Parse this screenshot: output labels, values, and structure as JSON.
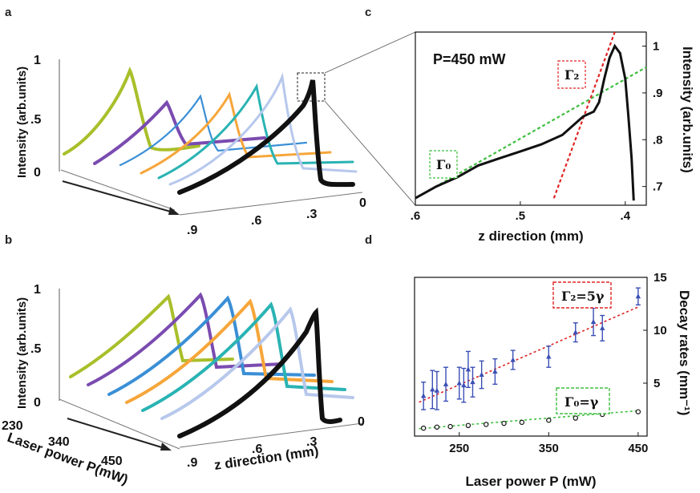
{
  "panels": {
    "a": "a",
    "b": "b",
    "c": "c",
    "d": "d"
  },
  "panel_a": {
    "y_ticks": [
      "1",
      ".5",
      "0"
    ],
    "y_label": "Intensity (arb.units)",
    "z_ticks": [
      ".9",
      ".6",
      ".3",
      "0"
    ]
  },
  "panel_b": {
    "y_ticks": [
      "1",
      ".5",
      "0"
    ],
    "y_label": "Intensity (arb.units)",
    "p_ticks": [
      "230",
      "340",
      "450"
    ],
    "p_label": "Laser power P(mW)",
    "z_ticks": [
      ".9",
      ".6",
      ".3",
      "0"
    ],
    "z_label": "z direction (mm)"
  },
  "panel_c": {
    "annotation": "P=450 mW",
    "gamma2_label": "Γ₂",
    "gamma0_label": "Γ₀",
    "x_ticks": [
      ".6",
      ".5",
      ".4"
    ],
    "x_label": "z direction (mm)",
    "y_ticks": [
      "1",
      ".9",
      ".8",
      ".7"
    ],
    "y_label": "Intensity (arb.units)"
  },
  "panel_d": {
    "gamma2_label": "Γ₂=5γ",
    "gamma0_label": "Γ₀=γ",
    "x_ticks": [
      "250",
      "350",
      "450"
    ],
    "x_label": "Laser power P (mW)",
    "y_ticks": [
      "15",
      "10",
      "5"
    ],
    "y_label": "Decay rates (mm⁻¹)"
  },
  "colors": {
    "olive": "#a9bf2a",
    "purple": "#7a4bb0",
    "blue": "#3a8fd6",
    "orange": "#f6a63a",
    "teal": "#2ab3b3",
    "lightblue": "#b7c8ec",
    "black": "#111111",
    "red_fit": "#e02424",
    "green_fit": "#3fbf3f",
    "markers": "#3b4fb5"
  },
  "chart_data": [
    {
      "panel": "c",
      "type": "line",
      "title": "P=450 mW",
      "xlabel": "z direction (mm)",
      "ylabel": "Intensity (arb.units)",
      "xlim": [
        0.6,
        0.38
      ],
      "ylim": [
        0.66,
        1.03
      ],
      "series": [
        {
          "x": [
            0.6,
            0.58,
            0.56,
            0.54,
            0.52,
            0.5,
            0.48,
            0.46,
            0.45,
            0.44,
            0.43,
            0.425,
            0.42,
            0.415,
            0.41,
            0.405,
            0.4,
            0.397,
            0.394,
            0.392
          ],
          "y": [
            0.675,
            0.7,
            0.72,
            0.745,
            0.76,
            0.775,
            0.79,
            0.81,
            0.83,
            0.85,
            0.86,
            0.88,
            0.93,
            0.975,
            1.0,
            0.985,
            0.93,
            0.85,
            0.76,
            0.67
          ]
        }
      ],
      "fits": [
        {
          "x": [
            0.6,
            0.38
          ],
          "y": [
            0.675,
            0.955
          ]
        },
        {
          "x": [
            0.468,
            0.41
          ],
          "y": [
            0.675,
            1.04
          ]
        }
      ]
    },
    {
      "panel": "d",
      "type": "scatter",
      "xlabel": "Laser power P (mW)",
      "ylabel": "Decay rates (mm⁻¹)",
      "xlim": [
        200,
        460
      ],
      "ylim": [
        0,
        15
      ],
      "series": [
        {
          "name": "Γ₂=5γ",
          "x": [
            210,
            220,
            225,
            235,
            250,
            255,
            260,
            265,
            275,
            290,
            310,
            350,
            380,
            400,
            410,
            450
          ],
          "y": [
            3.8,
            4.4,
            4.3,
            4.9,
            5.0,
            4.8,
            6.3,
            5.1,
            5.8,
            6.1,
            7.2,
            7.5,
            9.8,
            10.8,
            10.2,
            13.2
          ],
          "err": [
            1.3,
            1.8,
            1.8,
            1.6,
            1.5,
            1.6,
            1.7,
            1.4,
            1.3,
            1.2,
            0.9,
            1.0,
            0.9,
            1.3,
            1.2,
            0.8
          ]
        },
        {
          "name": "Γ₀=γ",
          "x": [
            210,
            225,
            240,
            260,
            280,
            300,
            320,
            350,
            380,
            410,
            450
          ],
          "y": [
            0.75,
            0.85,
            0.9,
            1.0,
            1.1,
            1.2,
            1.3,
            1.5,
            1.7,
            2.05,
            2.3
          ]
        }
      ],
      "fits": [
        {
          "x": [
            205,
            450
          ],
          "y": [
            3.2,
            12.2
          ]
        },
        {
          "x": [
            205,
            450
          ],
          "y": [
            0.7,
            2.4
          ]
        }
      ]
    }
  ]
}
